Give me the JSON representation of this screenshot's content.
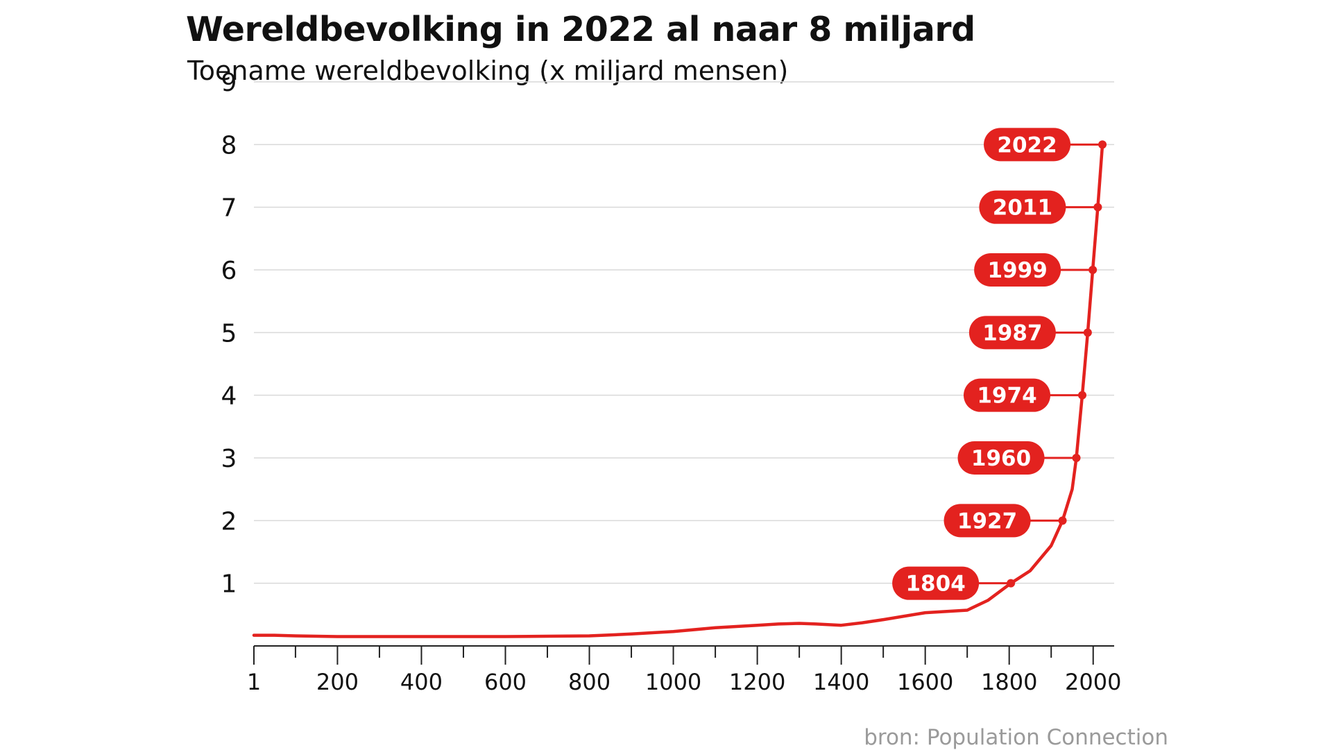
{
  "colors": {
    "accent": "#e3221f",
    "grid": "#d9d9d9",
    "axis": "#222222",
    "text": "#111111",
    "source": "#9a9a9a"
  },
  "chart_data": {
    "type": "line",
    "title": "Wereldbevolking in 2022 al naar 8 miljard",
    "subtitle": "Toename wereldbevolking (x miljard mensen)",
    "xlabel": "",
    "ylabel": "",
    "xlim": [
      1,
      2050
    ],
    "ylim": [
      0,
      9
    ],
    "grid": true,
    "x_ticks": [
      1,
      200,
      400,
      600,
      800,
      1000,
      1200,
      1400,
      1600,
      1800,
      2000
    ],
    "x_minor_ticks": [
      100,
      300,
      500,
      700,
      900,
      1100,
      1300,
      1500,
      1700,
      1900
    ],
    "y_ticks": [
      1,
      2,
      3,
      4,
      5,
      6,
      7,
      8,
      9
    ],
    "series": [
      {
        "x": [
          1,
          50,
          100,
          200,
          400,
          600,
          700,
          800,
          900,
          1000,
          1100,
          1200,
          1250,
          1300,
          1340,
          1400,
          1450,
          1500,
          1600,
          1700,
          1750,
          1804,
          1850,
          1900,
          1927,
          1950,
          1960,
          1974,
          1987,
          1999,
          2011,
          2022
        ],
        "values": [
          0.17,
          0.17,
          0.16,
          0.15,
          0.15,
          0.15,
          0.155,
          0.16,
          0.19,
          0.23,
          0.29,
          0.33,
          0.35,
          0.36,
          0.35,
          0.33,
          0.37,
          0.42,
          0.53,
          0.57,
          0.73,
          1.0,
          1.2,
          1.6,
          2.0,
          2.5,
          3.0,
          4.0,
          5.0,
          6.0,
          7.0,
          8.0
        ]
      }
    ],
    "milestones": [
      {
        "year": 1804,
        "label": "1804",
        "value": 1
      },
      {
        "year": 1927,
        "label": "1927",
        "value": 2
      },
      {
        "year": 1960,
        "label": "1960",
        "value": 3
      },
      {
        "year": 1974,
        "label": "1974",
        "value": 4
      },
      {
        "year": 1987,
        "label": "1987",
        "value": 5
      },
      {
        "year": 1999,
        "label": "1999",
        "value": 6
      },
      {
        "year": 2011,
        "label": "2011",
        "value": 7
      },
      {
        "year": 2022,
        "label": "2022",
        "value": 8
      }
    ]
  },
  "source": "bron: Population Connection"
}
